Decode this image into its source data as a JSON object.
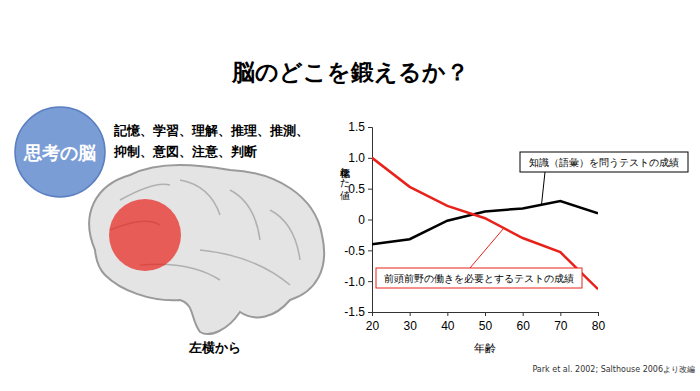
{
  "slide": {
    "title": "脳のどこを鍛えるか？",
    "badge": "思考の脳",
    "functions": [
      "記憶、学習、理解、推理、推測、",
      "抑制、意図、注意、判断"
    ],
    "caption": "左横から",
    "source": "Park et al. 2002; Salthouse 2006より改編"
  },
  "chart_data": {
    "type": "line",
    "x": [
      20,
      30,
      40,
      50,
      60,
      70,
      80
    ],
    "series": [
      {
        "name": "知識（語彙）を問うテストの成績",
        "color": "#000000",
        "values": [
          -0.4,
          -0.32,
          -0.02,
          0.13,
          0.18,
          0.3,
          0.1
        ]
      },
      {
        "name": "前頭前野の働きを必要とするテストの成績",
        "color": "#e8221a",
        "values": [
          1.0,
          0.53,
          0.22,
          0.02,
          -0.3,
          -0.53,
          -1.13
        ]
      }
    ],
    "x_label": "年齢",
    "y_label": "標準化した値",
    "xlim": [
      20,
      80
    ],
    "xticks": [
      20,
      30,
      40,
      50,
      60,
      70,
      80
    ],
    "ylim": [
      -1.5,
      1.5
    ],
    "yticks": [
      -1.5,
      {
        "value": -1,
        "label": "-1.0"
      },
      -0.5,
      0,
      0.5,
      {
        "value": 1,
        "label": "1.0"
      },
      1.5
    ],
    "grid": false
  }
}
